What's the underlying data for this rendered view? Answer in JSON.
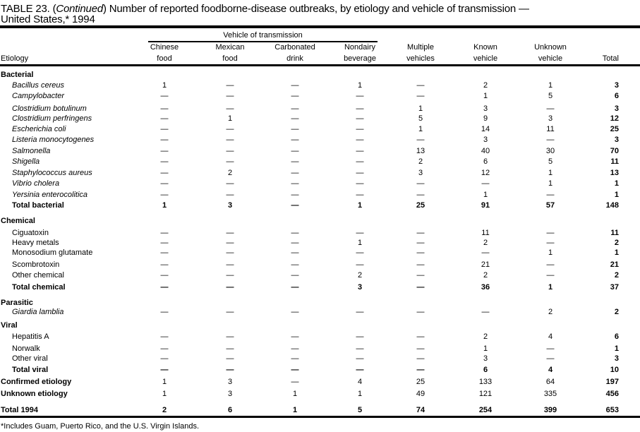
{
  "title": {
    "prefix": "TABLE 23. (",
    "continued": "Continued",
    "rest": ") Number of reported foodborne-disease  outbreaks, by etiology and vehicle of transmission —",
    "line2": "United States,* 1994"
  },
  "header": {
    "group": "Vehicle of transmission",
    "etiology": "Etiology",
    "columns": [
      {
        "l1": "Chinese",
        "l2": "food"
      },
      {
        "l1": "Mexican",
        "l2": "food"
      },
      {
        "l1": "Carbonated",
        "l2": "drink"
      },
      {
        "l1": "Nondairy",
        "l2": "beverage"
      },
      {
        "l1": "Multiple",
        "l2": "vehicles"
      },
      {
        "l1": "Known",
        "l2": "vehicle"
      },
      {
        "l1": "Unknown",
        "l2": "vehicle"
      },
      {
        "l1": "",
        "l2": "Total"
      }
    ]
  },
  "rows": [
    {
      "label": "Bacterial",
      "kind": "cat"
    },
    {
      "label": "Bacillus cereus",
      "kind": "it",
      "values": [
        "1",
        "—",
        "—",
        "1",
        "—",
        "2",
        "1",
        "3"
      ]
    },
    {
      "label": "Campylobacter",
      "kind": "it",
      "values": [
        "—",
        "—",
        "—",
        "—",
        "—",
        "1",
        "5",
        "6"
      ]
    },
    {
      "label": "Clostridium botulinum",
      "kind": "it",
      "values": [
        "—",
        "—",
        "—",
        "—",
        "1",
        "3",
        "—",
        "3"
      ]
    },
    {
      "label": "Clostridium perfringens",
      "kind": "it",
      "values": [
        "—",
        "1",
        "—",
        "—",
        "5",
        "9",
        "3",
        "12"
      ]
    },
    {
      "label": "Escherichia coli",
      "kind": "it",
      "values": [
        "—",
        "—",
        "—",
        "—",
        "1",
        "14",
        "11",
        "25"
      ]
    },
    {
      "label": "Listeria monocytogenes",
      "kind": "it",
      "values": [
        "—",
        "—",
        "—",
        "—",
        "—",
        "3",
        "—",
        "3"
      ]
    },
    {
      "label": "Salmonella",
      "kind": "it",
      "values": [
        "—",
        "—",
        "—",
        "—",
        "13",
        "40",
        "30",
        "70"
      ]
    },
    {
      "label": "Shigella",
      "kind": "it",
      "values": [
        "—",
        "—",
        "—",
        "—",
        "2",
        "6",
        "5",
        "11"
      ]
    },
    {
      "label": "Staphylococcus aureus",
      "kind": "it",
      "values": [
        "—",
        "2",
        "—",
        "—",
        "3",
        "12",
        "1",
        "13"
      ]
    },
    {
      "label": "Vibrio cholera",
      "kind": "it",
      "values": [
        "—",
        "—",
        "—",
        "—",
        "—",
        "—",
        "1",
        "1"
      ]
    },
    {
      "label": "Yersinia enterocolitica",
      "kind": "it",
      "values": [
        "—",
        "—",
        "—",
        "—",
        "—",
        "1",
        "—",
        "1"
      ]
    },
    {
      "label": "Total bacterial",
      "kind": "subtotal",
      "values": [
        "1",
        "3",
        "—",
        "1",
        "25",
        "91",
        "57",
        "148"
      ]
    },
    {
      "label": "Chemical",
      "kind": "cat"
    },
    {
      "label": "Ciguatoxin",
      "kind": "ind",
      "values": [
        "—",
        "—",
        "—",
        "—",
        "—",
        "11",
        "—",
        "11"
      ]
    },
    {
      "label": "Heavy metals",
      "kind": "ind",
      "values": [
        "—",
        "—",
        "—",
        "1",
        "—",
        "2",
        "—",
        "2"
      ]
    },
    {
      "label": "Monosodium glutamate",
      "kind": "ind",
      "values": [
        "—",
        "—",
        "—",
        "—",
        "—",
        "—",
        "1",
        "1"
      ]
    },
    {
      "label": "Scombrotoxin",
      "kind": "ind",
      "values": [
        "—",
        "—",
        "—",
        "—",
        "—",
        "21",
        "—",
        "21"
      ]
    },
    {
      "label": "Other chemical",
      "kind": "ind",
      "values": [
        "—",
        "—",
        "—",
        "2",
        "—",
        "2",
        "—",
        "2"
      ]
    },
    {
      "label": "Total chemical",
      "kind": "subtotal",
      "values": [
        "—",
        "—",
        "—",
        "3",
        "—",
        "36",
        "1",
        "37"
      ]
    },
    {
      "label": "Parasitic",
      "kind": "cat"
    },
    {
      "label": "Giardia lamblia",
      "kind": "it",
      "values": [
        "—",
        "—",
        "—",
        "—",
        "—",
        "—",
        "2",
        "2"
      ]
    },
    {
      "label": "Viral",
      "kind": "cat"
    },
    {
      "label": "Hepatitis A",
      "kind": "ind",
      "values": [
        "—",
        "—",
        "—",
        "—",
        "—",
        "2",
        "4",
        "6"
      ]
    },
    {
      "label": "Norwalk",
      "kind": "ind",
      "values": [
        "—",
        "—",
        "—",
        "—",
        "—",
        "1",
        "—",
        "1"
      ]
    },
    {
      "label": "Other viral",
      "kind": "ind",
      "values": [
        "—",
        "—",
        "—",
        "—",
        "—",
        "3",
        "—",
        "3"
      ]
    },
    {
      "label": "Total viral",
      "kind": "subtotal",
      "values": [
        "—",
        "—",
        "—",
        "—",
        "—",
        "6",
        "4",
        "10"
      ]
    },
    {
      "label": "Confirmed etiology",
      "kind": "top",
      "values": [
        "1",
        "3",
        "—",
        "4",
        "25",
        "133",
        "64",
        "197"
      ]
    },
    {
      "label": "Unknown etiology",
      "kind": "top",
      "values": [
        "1",
        "3",
        "1",
        "1",
        "49",
        "121",
        "335",
        "456"
      ]
    },
    {
      "label": "Total 1994",
      "kind": "grand",
      "values": [
        "2",
        "6",
        "1",
        "5",
        "74",
        "254",
        "399",
        "653"
      ]
    }
  ],
  "footnote": "*Includes Guam, Puerto Rico, and the U.S. Virgin Islands."
}
